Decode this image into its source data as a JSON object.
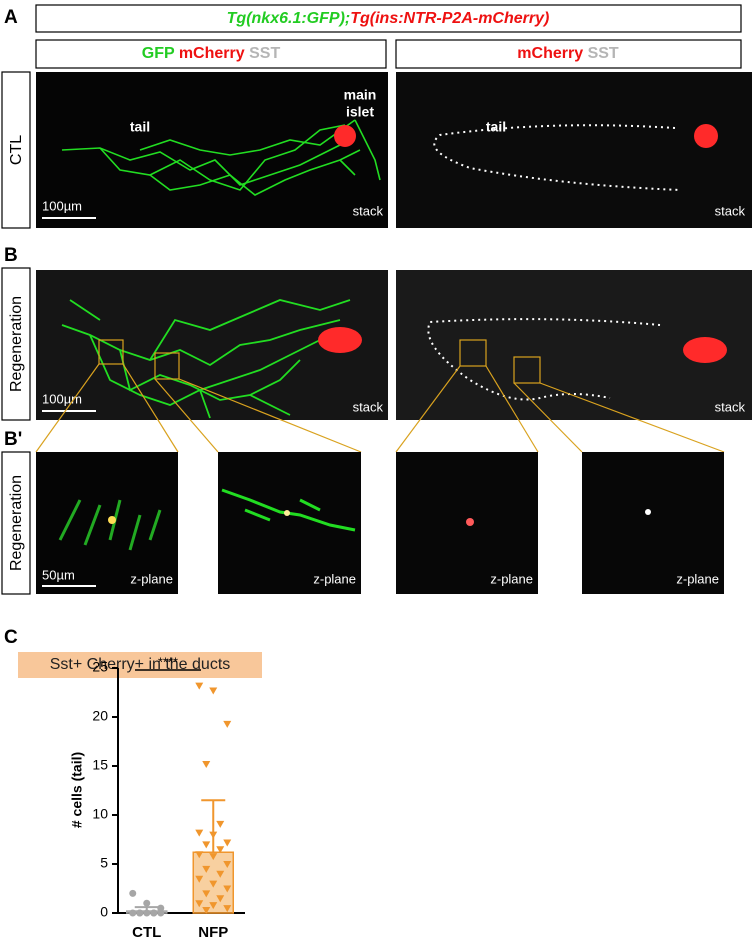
{
  "panel_labels": [
    "A",
    "B",
    "B'",
    "C"
  ],
  "title": {
    "part1": "Tg(nkx6.1:GFP);",
    "part2": "Tg(ins:NTR-P2A-mCherry)"
  },
  "headers": {
    "left": [
      "GFP",
      "mCherry",
      "SST"
    ],
    "right": [
      "mCherry",
      "SST"
    ]
  },
  "rows": [
    "CTL",
    "Regeneration",
    "Regeneration"
  ],
  "images": {
    "ctl_left": [
      "tail",
      "main",
      "islet",
      "100µm",
      "stack"
    ],
    "ctl_right": [
      "tail",
      "stack"
    ],
    "reg_left": [
      "100µm",
      "stack"
    ],
    "reg_right": [
      "stack"
    ],
    "zoom": [
      "50µm",
      "z-plane",
      "z-plane",
      "z-plane",
      "z-plane"
    ]
  },
  "chart_data": {
    "type": "bar",
    "title": "Sst+ Cherry+ in the ducts",
    "y_label": "# cells (tail)",
    "categories": [
      "CTL",
      "NFP"
    ],
    "colors": [
      "#a6a6a6",
      "#f0962d"
    ],
    "values": [
      0.2,
      6.2
    ],
    "errors": [
      0.4,
      5.3
    ],
    "points": [
      [
        2,
        1,
        0.5,
        0,
        0,
        0,
        0,
        0,
        0,
        0
      ],
      [
        23.2,
        22.7,
        19.3,
        15.2,
        9.1,
        8.2,
        8,
        7.2,
        7,
        6.5,
        6,
        5.8,
        5,
        4.5,
        4,
        3.5,
        3,
        2.5,
        2,
        1.5,
        1,
        0.8,
        0.5,
        0.3
      ]
    ],
    "significance": "****",
    "ylim": [
      0,
      25
    ],
    "yticks": [
      0,
      5,
      10,
      15,
      20,
      25
    ]
  }
}
